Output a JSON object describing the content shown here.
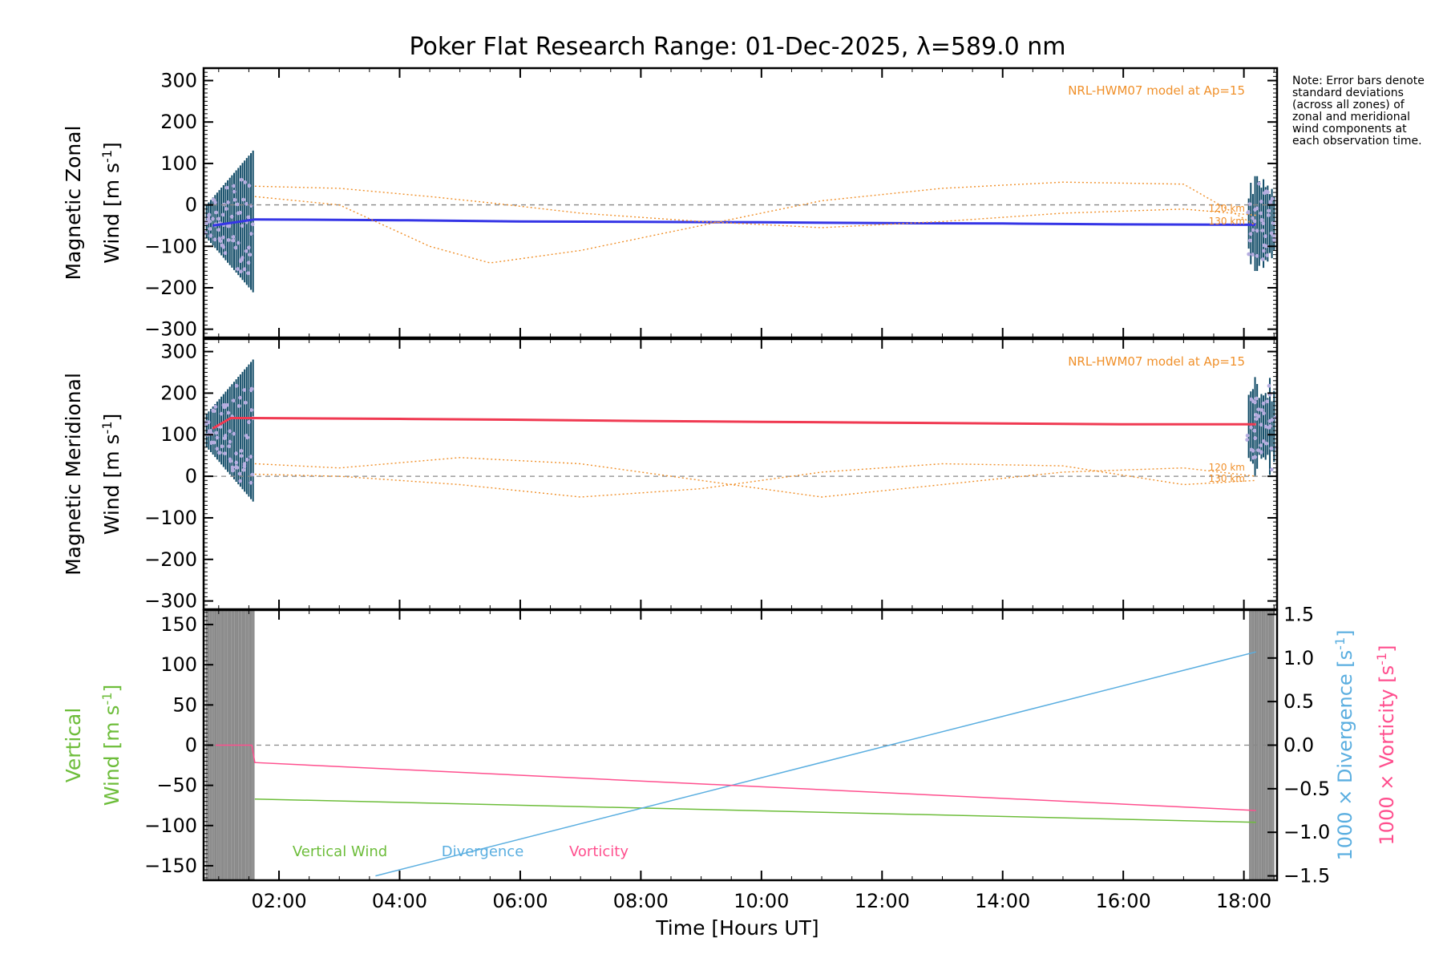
{
  "figure": {
    "title": "Poker Flat Research Range: 01-Dec-2025, λ=589.0 nm",
    "note": "Note: Error bars denote standard deviations (across all zones) of zonal and meridional wind components at each observation time.",
    "xlabel": "Time [Hours UT]",
    "xticks": [
      "02:00",
      "04:00",
      "06:00",
      "08:00",
      "10:00",
      "12:00",
      "14:00",
      "16:00",
      "18:00"
    ],
    "model_label": "NRL-HWM07 model at Ap=15",
    "km_labels": [
      "120 km",
      "130 km"
    ],
    "colors": {
      "zonal": "#3535e6",
      "zonal_raw": "#62b1e6",
      "meridional": "#f03a52",
      "meridional_raw": "#ff5c8c",
      "model": "#f0902a",
      "errorbar": "#0f4a66",
      "scatter": "#b6aee0",
      "vertical": "#6dbd3a",
      "divergence": "#5aaee0",
      "vorticity": "#ff4f8e",
      "gray_band": "#8a8a8a"
    }
  },
  "chart_data": [
    {
      "type": "line",
      "title": "Poker Flat Research Range: 01-Dec-2025, λ=589.0 nm",
      "ylabel_line1": "Magnetic Zonal",
      "ylabel_line2": "Wind [m s",
      "ylabel_sup": "-1",
      "ylabel_close": "]",
      "ylim": [
        -320,
        330
      ],
      "yticks": [
        300,
        200,
        100,
        0,
        -100,
        -200,
        -300
      ],
      "xlim": [
        0.75,
        18.55
      ],
      "annotation": "NRL-HWM07 model at Ap=15",
      "series": [
        {
          "name": "zonal wind",
          "x": [
            0.9,
            1.6,
            4.0,
            6.0,
            8.0,
            10.0,
            12.0,
            14.0,
            16.0,
            18.2
          ],
          "values": [
            -50,
            -35,
            -37,
            -40,
            -41,
            -42,
            -44,
            -45,
            -47,
            -48
          ]
        },
        {
          "name": "model 120 km",
          "x": [
            1.6,
            3.0,
            4.5,
            5.5,
            7.0,
            9.0,
            11.0,
            13.0,
            15.0,
            17.0,
            18.2
          ],
          "values": [
            45,
            40,
            20,
            5,
            -20,
            -40,
            -55,
            -40,
            -20,
            -10,
            -25
          ]
        },
        {
          "name": "model 130 km",
          "x": [
            1.6,
            3.0,
            4.5,
            5.5,
            7.0,
            9.0,
            11.0,
            13.0,
            15.0,
            17.0,
            18.2
          ],
          "values": [
            20,
            0,
            -100,
            -140,
            -110,
            -50,
            10,
            40,
            55,
            50,
            -50
          ]
        }
      ]
    },
    {
      "type": "line",
      "ylabel_line1": "Magnetic Meridional",
      "ylabel_line2": "Wind [m s",
      "ylabel_sup": "-1",
      "ylabel_close": "]",
      "ylim": [
        -320,
        330
      ],
      "yticks": [
        300,
        200,
        100,
        0,
        -100,
        -200,
        -300
      ],
      "xlim": [
        0.75,
        18.55
      ],
      "annotation": "NRL-HWM07 model at Ap=15",
      "series": [
        {
          "name": "meridional wind",
          "x": [
            0.9,
            1.2,
            1.6,
            4.0,
            6.0,
            8.0,
            10.0,
            12.0,
            14.0,
            16.0,
            18.2
          ],
          "values": [
            115,
            140,
            140,
            138,
            136,
            133,
            131,
            129,
            127,
            125,
            125
          ]
        },
        {
          "name": "model 120 km",
          "x": [
            1.6,
            3.0,
            5.0,
            7.0,
            9.0,
            11.0,
            13.0,
            15.0,
            17.0,
            18.2
          ],
          "values": [
            30,
            20,
            45,
            30,
            -10,
            -50,
            -20,
            10,
            20,
            0
          ]
        },
        {
          "name": "model 130 km",
          "x": [
            1.6,
            3.0,
            5.0,
            7.0,
            9.0,
            11.0,
            13.0,
            15.0,
            17.0,
            18.2
          ],
          "values": [
            5,
            0,
            -20,
            -50,
            -30,
            10,
            30,
            25,
            -20,
            -10
          ]
        }
      ]
    },
    {
      "type": "line",
      "ylabel_line1": "Vertical",
      "ylabel_line2": "Wind [m s",
      "ylabel_sup": "-1",
      "ylabel_close": "]",
      "ylim": [
        -168,
        168
      ],
      "yticks": [
        150,
        100,
        50,
        0,
        -50,
        -100,
        -150
      ],
      "xlim": [
        0.75,
        18.55
      ],
      "y2label_a": "1000 × Divergence [s",
      "y2label_b": "1000 × Vorticity [s",
      "y2label_sup": "-1",
      "y2label_close": "]",
      "y2lim": [
        -1.55,
        1.55
      ],
      "y2ticks": [
        "1.5",
        "1.0",
        "0.5",
        "0.0",
        "-0.5",
        "-1.0",
        "-1.5"
      ],
      "legend": [
        "Vertical Wind",
        "Divergence",
        "Vorticity"
      ],
      "series": [
        {
          "name": "Vertical Wind",
          "x": [
            1.6,
            18.2
          ],
          "values": [
            -67,
            -96
          ]
        },
        {
          "name": "Divergence",
          "x": [
            3.6,
            18.2
          ],
          "values": [
            -1.5,
            1.07
          ]
        },
        {
          "name": "Vorticity",
          "x": [
            0.95,
            1.55,
            1.6,
            18.2
          ],
          "values": [
            0.0,
            0.0,
            -0.2,
            -0.75
          ]
        }
      ]
    }
  ]
}
